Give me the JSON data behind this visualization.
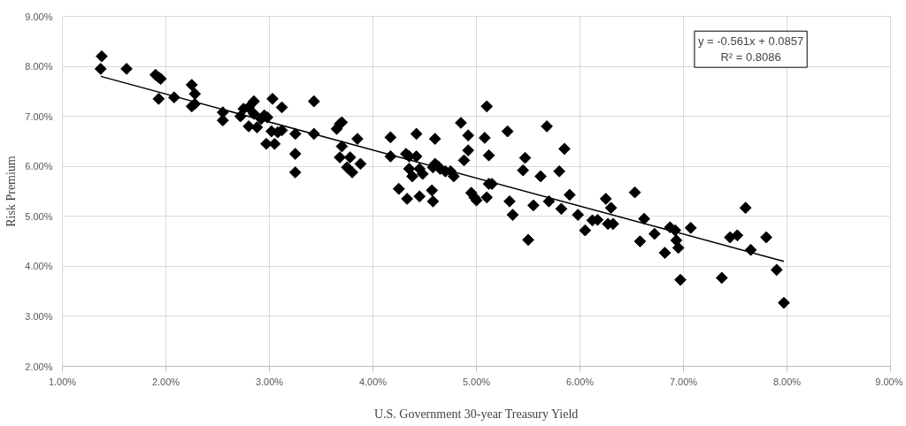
{
  "chart_data": {
    "type": "scatter",
    "xlabel": "U.S. Government 30-year Treasury Yield",
    "ylabel": "Risk Premium",
    "annotations": [
      "y = -0.561x + 0.0857",
      "R² = 0.8086"
    ],
    "xlim": [
      0.01,
      0.09
    ],
    "ylim": [
      0.02,
      0.09
    ],
    "xticks": [
      {
        "value": 0.01,
        "label": "1.00%"
      },
      {
        "value": 0.02,
        "label": "2.00%"
      },
      {
        "value": 0.03,
        "label": "3.00%"
      },
      {
        "value": 0.04,
        "label": "4.00%"
      },
      {
        "value": 0.05,
        "label": "5.00%"
      },
      {
        "value": 0.06,
        "label": "6.00%"
      },
      {
        "value": 0.07,
        "label": "7.00%"
      },
      {
        "value": 0.08,
        "label": "8.00%"
      },
      {
        "value": 0.09,
        "label": "9.00%"
      }
    ],
    "yticks": [
      {
        "value": 0.02,
        "label": "2.00%"
      },
      {
        "value": 0.03,
        "label": "3.00%"
      },
      {
        "value": 0.04,
        "label": "4.00%"
      },
      {
        "value": 0.05,
        "label": "5.00%"
      },
      {
        "value": 0.06,
        "label": "6.00%"
      },
      {
        "value": 0.07,
        "label": "7.00%"
      },
      {
        "value": 0.08,
        "label": "8.00%"
      },
      {
        "value": 0.09,
        "label": "9.00%"
      }
    ],
    "grid": true,
    "series": [
      {
        "marker": "diamond",
        "color": "#000000",
        "x": [
          0.0137,
          0.0138,
          0.0162,
          0.019,
          0.0193,
          0.0195,
          0.0193,
          0.0208,
          0.0225,
          0.0228,
          0.0225,
          0.0228,
          0.0255,
          0.0255,
          0.0272,
          0.0275,
          0.028,
          0.028,
          0.0285,
          0.0285,
          0.0288,
          0.0292,
          0.0295,
          0.0297,
          0.0298,
          0.0302,
          0.0303,
          0.0305,
          0.0308,
          0.0312,
          0.0312,
          0.0325,
          0.0325,
          0.0325,
          0.0343,
          0.0343,
          0.0365,
          0.0368,
          0.037,
          0.0368,
          0.037,
          0.0375,
          0.0378,
          0.038,
          0.0385,
          0.0388,
          0.0417,
          0.0417,
          0.0425,
          0.0432,
          0.0433,
          0.0435,
          0.0435,
          0.0438,
          0.0442,
          0.0442,
          0.0445,
          0.0445,
          0.0448,
          0.0457,
          0.0458,
          0.0458,
          0.046,
          0.046,
          0.0463,
          0.0465,
          0.047,
          0.0475,
          0.0478,
          0.0485,
          0.0488,
          0.0492,
          0.0492,
          0.0495,
          0.0498,
          0.05,
          0.0508,
          0.051,
          0.051,
          0.0512,
          0.0512,
          0.0515,
          0.053,
          0.0532,
          0.0535,
          0.0545,
          0.0547,
          0.055,
          0.0555,
          0.0562,
          0.0568,
          0.057,
          0.058,
          0.0582,
          0.0585,
          0.059,
          0.0598,
          0.0605,
          0.0612,
          0.0617,
          0.0625,
          0.0627,
          0.063,
          0.0632,
          0.0653,
          0.0658,
          0.0662,
          0.0672,
          0.0682,
          0.0687,
          0.0692,
          0.0693,
          0.0695,
          0.0697,
          0.0707,
          0.0737,
          0.0745,
          0.0752,
          0.076,
          0.0765,
          0.078,
          0.079,
          0.0797
        ],
        "values": [
          0.0795,
          0.082,
          0.0795,
          0.0783,
          0.0778,
          0.0775,
          0.0735,
          0.0738,
          0.0763,
          0.0745,
          0.072,
          0.0725,
          0.0708,
          0.0692,
          0.07,
          0.0715,
          0.068,
          0.0718,
          0.073,
          0.0705,
          0.0678,
          0.0695,
          0.0702,
          0.0645,
          0.0698,
          0.067,
          0.0735,
          0.0645,
          0.0668,
          0.0672,
          0.0718,
          0.0665,
          0.0625,
          0.0588,
          0.073,
          0.0665,
          0.0675,
          0.0685,
          0.0688,
          0.0618,
          0.064,
          0.0598,
          0.0618,
          0.0588,
          0.0655,
          0.0605,
          0.0658,
          0.062,
          0.0555,
          0.0625,
          0.0535,
          0.062,
          0.0595,
          0.058,
          0.0665,
          0.062,
          0.054,
          0.0595,
          0.0585,
          0.0552,
          0.053,
          0.0598,
          0.0655,
          0.0605,
          0.06,
          0.0595,
          0.059,
          0.059,
          0.058,
          0.0687,
          0.0612,
          0.0662,
          0.0632,
          0.0547,
          0.0538,
          0.0532,
          0.0657,
          0.0538,
          0.072,
          0.0622,
          0.0565,
          0.0565,
          0.067,
          0.053,
          0.0503,
          0.0592,
          0.0617,
          0.0453,
          0.0522,
          0.058,
          0.068,
          0.053,
          0.059,
          0.0515,
          0.0635,
          0.0543,
          0.0503,
          0.0472,
          0.0492,
          0.0493,
          0.0535,
          0.0485,
          0.0517,
          0.0485,
          0.0548,
          0.045,
          0.0495,
          0.0465,
          0.0427,
          0.0478,
          0.0472,
          0.0452,
          0.0437,
          0.0373,
          0.0477,
          0.0377,
          0.0458,
          0.0462,
          0.0517,
          0.0433,
          0.0458,
          0.0393,
          0.0327
        ]
      },
      {
        "type": "line",
        "marker": "none",
        "color": "#000000",
        "x": [
          0.0137,
          0.0797
        ],
        "values": [
          0.078,
          0.041
        ]
      }
    ]
  }
}
